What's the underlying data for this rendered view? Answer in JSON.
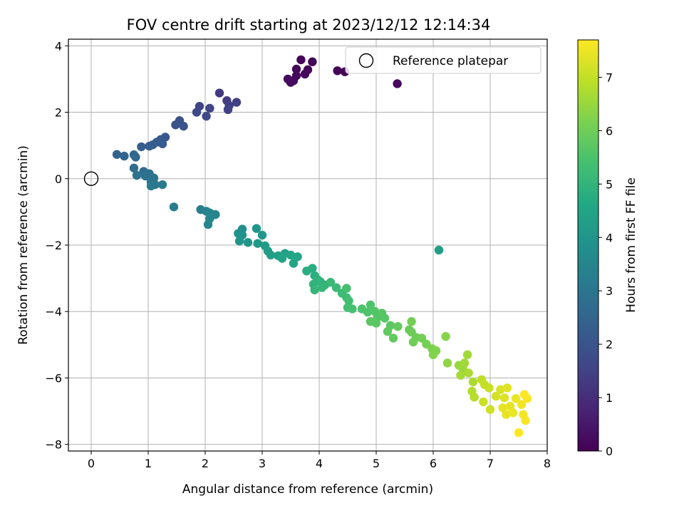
{
  "chart_data": {
    "type": "scatter",
    "title": "FOV centre drift starting at 2023/12/12 12:14:34",
    "xlabel": "Angular distance from reference (arcmin)",
    "ylabel": "Rotation from reference (arcmin)",
    "xlim": [
      -0.4,
      8.0
    ],
    "ylim": [
      -8.2,
      4.2
    ],
    "xticks": [
      0,
      1,
      2,
      3,
      4,
      5,
      6,
      7,
      8
    ],
    "yticks": [
      -8,
      -6,
      -4,
      -2,
      0,
      2,
      4
    ],
    "grid": true,
    "legend": {
      "placement": "upper-right",
      "entries": [
        "Reference platepar"
      ]
    },
    "reference_point": {
      "x": 0,
      "y": 0
    },
    "colorbar": {
      "label": "Hours from first FF file",
      "min": 0,
      "max": 7.7,
      "ticks": [
        0,
        1,
        2,
        3,
        4,
        5,
        6,
        7
      ],
      "colormap": "viridis"
    },
    "series": [
      {
        "points": [
          [
            3.68,
            3.58
          ],
          [
            3.88,
            3.52
          ],
          [
            3.6,
            3.3
          ],
          [
            3.8,
            3.28
          ],
          [
            3.75,
            3.15
          ],
          [
            3.6,
            3.1
          ],
          [
            3.45,
            3.0
          ],
          [
            3.55,
            2.95
          ],
          [
            3.5,
            2.9
          ],
          [
            4.32,
            3.25
          ],
          [
            4.45,
            3.22
          ],
          [
            5.37,
            2.86
          ],
          [
            2.25,
            2.58
          ],
          [
            2.38,
            2.35
          ],
          [
            2.42,
            2.2
          ],
          [
            2.55,
            2.3
          ],
          [
            2.4,
            2.08
          ],
          [
            1.9,
            2.18
          ],
          [
            2.08,
            2.12
          ],
          [
            1.85,
            2.0
          ],
          [
            2.02,
            1.88
          ],
          [
            1.55,
            1.75
          ],
          [
            1.48,
            1.62
          ],
          [
            1.62,
            1.58
          ],
          [
            1.3,
            1.25
          ],
          [
            1.22,
            1.18
          ],
          [
            1.15,
            1.1
          ],
          [
            1.08,
            1.02
          ],
          [
            1.25,
            1.05
          ],
          [
            0.88,
            0.96
          ],
          [
            1.02,
            0.98
          ],
          [
            0.45,
            0.73
          ],
          [
            0.58,
            0.68
          ],
          [
            0.75,
            0.72
          ],
          [
            0.78,
            0.65
          ],
          [
            0.75,
            0.32
          ],
          [
            0.92,
            0.22
          ],
          [
            1.02,
            0.15
          ],
          [
            0.95,
            0.08
          ],
          [
            0.8,
            0.1
          ],
          [
            1.1,
            0.02
          ],
          [
            1.05,
            -0.1
          ],
          [
            1.12,
            -0.18
          ],
          [
            1.05,
            -0.22
          ],
          [
            1.25,
            -0.18
          ],
          [
            1.45,
            -0.85
          ],
          [
            1.92,
            -0.93
          ],
          [
            2.02,
            -0.98
          ],
          [
            2.08,
            -1.03
          ],
          [
            2.18,
            -1.08
          ],
          [
            2.08,
            -1.2
          ],
          [
            2.05,
            -1.38
          ],
          [
            2.65,
            -1.52
          ],
          [
            2.58,
            -1.65
          ],
          [
            2.65,
            -1.7
          ],
          [
            2.6,
            -1.88
          ],
          [
            2.75,
            -1.92
          ],
          [
            2.9,
            -1.5
          ],
          [
            3.0,
            -1.7
          ],
          [
            2.92,
            -1.95
          ],
          [
            3.05,
            -2.02
          ],
          [
            3.1,
            -2.18
          ],
          [
            3.15,
            -2.3
          ],
          [
            3.28,
            -2.32
          ],
          [
            3.4,
            -2.25
          ],
          [
            3.35,
            -2.4
          ],
          [
            3.5,
            -2.3
          ],
          [
            3.62,
            -2.35
          ],
          [
            3.55,
            -2.55
          ],
          [
            3.78,
            -2.78
          ],
          [
            3.88,
            -2.7
          ],
          [
            3.92,
            -2.92
          ],
          [
            3.98,
            -3.05
          ],
          [
            3.9,
            -3.18
          ],
          [
            4.02,
            -3.1
          ],
          [
            4.1,
            -3.2
          ],
          [
            3.92,
            -3.35
          ],
          [
            4.05,
            -3.28
          ],
          [
            4.2,
            -3.12
          ],
          [
            4.3,
            -3.28
          ],
          [
            4.4,
            -3.45
          ],
          [
            4.48,
            -3.58
          ],
          [
            4.52,
            -3.68
          ],
          [
            4.5,
            -3.88
          ],
          [
            4.48,
            -3.3
          ],
          [
            4.58,
            -3.92
          ],
          [
            4.75,
            -3.92
          ],
          [
            4.85,
            -4.02
          ],
          [
            4.9,
            -3.8
          ],
          [
            4.98,
            -4.0
          ],
          [
            5.02,
            -4.18
          ],
          [
            5.1,
            -4.05
          ],
          [
            5.15,
            -4.2
          ],
          [
            5.0,
            -4.35
          ],
          [
            4.9,
            -4.3
          ],
          [
            5.25,
            -4.42
          ],
          [
            5.2,
            -4.6
          ],
          [
            5.3,
            -4.8
          ],
          [
            5.38,
            -4.45
          ],
          [
            5.58,
            -4.55
          ],
          [
            5.62,
            -4.62
          ],
          [
            5.7,
            -4.78
          ],
          [
            5.65,
            -4.92
          ],
          [
            5.8,
            -4.8
          ],
          [
            5.62,
            -4.3
          ],
          [
            5.88,
            -4.98
          ],
          [
            5.98,
            -5.12
          ],
          [
            6.05,
            -5.18
          ],
          [
            6.0,
            -5.3
          ],
          [
            6.22,
            -4.75
          ],
          [
            6.1,
            -2.15
          ],
          [
            6.25,
            -5.55
          ],
          [
            6.45,
            -5.62
          ],
          [
            6.52,
            -5.72
          ],
          [
            6.55,
            -5.55
          ],
          [
            6.6,
            -5.3
          ],
          [
            6.48,
            -5.92
          ],
          [
            6.62,
            -5.85
          ],
          [
            6.7,
            -6.12
          ],
          [
            6.68,
            -6.4
          ],
          [
            6.72,
            -6.58
          ],
          [
            6.85,
            -6.05
          ],
          [
            6.9,
            -6.2
          ],
          [
            6.98,
            -6.3
          ],
          [
            6.88,
            -6.72
          ],
          [
            7.0,
            -6.95
          ],
          [
            7.1,
            -6.55
          ],
          [
            7.18,
            -6.35
          ],
          [
            7.25,
            -6.6
          ],
          [
            7.3,
            -6.3
          ],
          [
            7.22,
            -6.9
          ],
          [
            7.35,
            -6.85
          ],
          [
            7.28,
            -7.1
          ],
          [
            7.4,
            -7.05
          ],
          [
            7.45,
            -6.62
          ],
          [
            7.55,
            -6.8
          ],
          [
            7.58,
            -7.1
          ],
          [
            7.62,
            -7.28
          ],
          [
            7.65,
            -6.62
          ],
          [
            7.5,
            -7.65
          ],
          [
            7.6,
            -6.5
          ]
        ],
        "hours": [
          0.05,
          0.08,
          0.1,
          0.12,
          0.15,
          0.18,
          0.2,
          0.22,
          0.25,
          0.1,
          0.12,
          0.15,
          1.3,
          1.35,
          1.4,
          1.45,
          1.5,
          1.55,
          1.6,
          1.65,
          1.7,
          1.9,
          1.95,
          2.0,
          2.1,
          2.15,
          2.2,
          2.25,
          2.25,
          2.3,
          2.3,
          2.45,
          2.5,
          2.55,
          2.6,
          2.7,
          2.75,
          2.8,
          2.85,
          2.9,
          2.95,
          3.0,
          3.05,
          3.1,
          3.1,
          3.2,
          3.3,
          3.35,
          3.4,
          3.45,
          3.5,
          3.55,
          3.8,
          3.85,
          3.9,
          3.95,
          4.0,
          4.0,
          4.05,
          4.1,
          4.2,
          4.25,
          4.3,
          4.35,
          4.4,
          4.45,
          4.5,
          4.55,
          4.55,
          4.75,
          4.8,
          4.85,
          4.9,
          4.95,
          5.0,
          5.0,
          5.05,
          5.1,
          5.15,
          5.2,
          5.25,
          5.3,
          5.35,
          5.35,
          5.4,
          5.4,
          5.5,
          5.55,
          5.55,
          5.6,
          5.6,
          5.65,
          5.65,
          5.7,
          5.7,
          5.75,
          5.8,
          5.8,
          5.85,
          5.9,
          5.95,
          6.0,
          6.0,
          6.05,
          6.05,
          6.1,
          6.15,
          6.2,
          6.25,
          6.3,
          4.3,
          6.4,
          6.5,
          6.55,
          6.6,
          6.6,
          6.65,
          6.7,
          6.75,
          6.8,
          6.85,
          6.95,
          7.0,
          7.05,
          7.1,
          7.15,
          7.2,
          7.25,
          7.3,
          7.35,
          7.4,
          7.4,
          7.45,
          7.5,
          7.5,
          7.55,
          7.6,
          7.62,
          7.65,
          7.68,
          7.7
        ]
      }
    ]
  }
}
